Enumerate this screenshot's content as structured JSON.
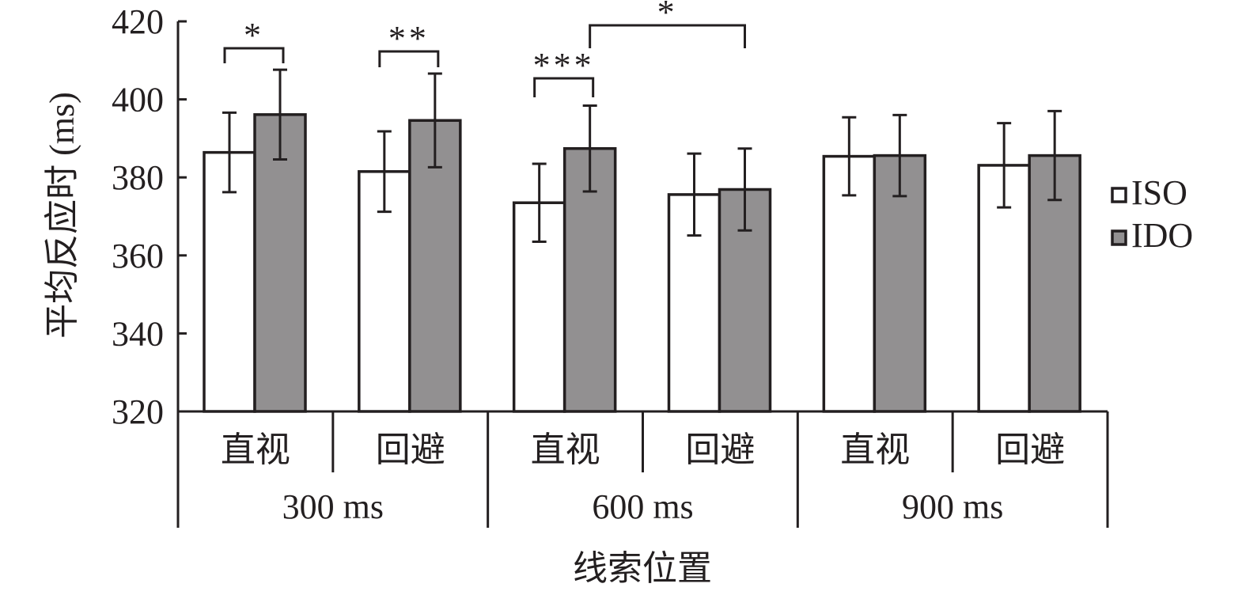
{
  "chart_data": {
    "type": "bar",
    "title": "",
    "ylabel": "平均反应时 (ms)",
    "xlabel": "线索位置",
    "ylim": [
      320,
      420
    ],
    "yticks": [
      320,
      340,
      360,
      380,
      400,
      420
    ],
    "grid": false,
    "legend_placement": "right",
    "groups": [
      {
        "label": "300 ms",
        "categories": [
          "直视",
          "回避"
        ]
      },
      {
        "label": "600 ms",
        "categories": [
          "直视",
          "回避"
        ]
      },
      {
        "label": "900 ms",
        "categories": [
          "直视",
          "回避"
        ]
      }
    ],
    "categories": [
      "300 ms 直视",
      "300 ms 回避",
      "600 ms 直视",
      "600 ms 回避",
      "900 ms 直视",
      "900 ms 回避"
    ],
    "series": [
      {
        "name": "ISO",
        "color": "#ffffff",
        "values": [
          386.4,
          381.5,
          373.5,
          375.6,
          385.4,
          383.1
        ],
        "errors": [
          10.2,
          10.3,
          10.0,
          10.5,
          10.0,
          10.8
        ]
      },
      {
        "name": "IDO",
        "color": "#929091",
        "values": [
          396.1,
          394.6,
          387.4,
          376.9,
          385.6,
          385.6
        ],
        "errors": [
          11.5,
          12.0,
          11.0,
          10.5,
          10.4,
          11.4
        ]
      }
    ],
    "annotations": [
      {
        "text": "*",
        "from": {
          "category": 0,
          "series": 0
        },
        "to": {
          "category": 0,
          "series": 1
        }
      },
      {
        "text": "**",
        "from": {
          "category": 1,
          "series": 0
        },
        "to": {
          "category": 1,
          "series": 1
        }
      },
      {
        "text": "***",
        "from": {
          "category": 2,
          "series": 0
        },
        "to": {
          "category": 2,
          "series": 1
        }
      },
      {
        "text": "*",
        "from": {
          "category": 2,
          "series": 1
        },
        "to": {
          "category": 3,
          "series": 1
        }
      }
    ]
  }
}
